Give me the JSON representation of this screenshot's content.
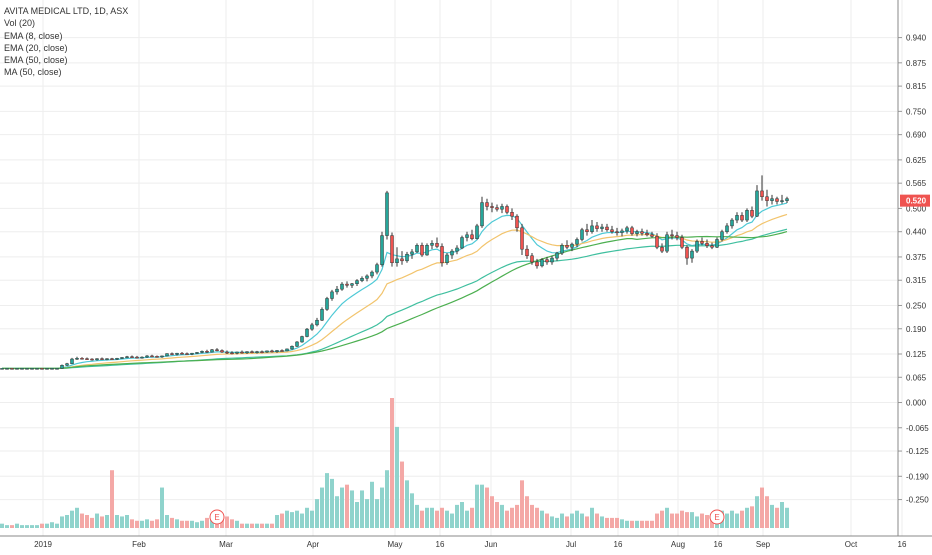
{
  "legend": {
    "title": "AVITA MEDICAL LTD, 1D, ASX",
    "indicators": [
      "Vol (20)",
      "EMA (8, close)",
      "EMA (20, close)",
      "EMA (50, close)",
      "MA (50, close)"
    ]
  },
  "colors": {
    "up": "#26a69a",
    "down": "#ef5350",
    "vol_up": "#8fd3cc",
    "vol_down": "#f4a8a6",
    "ema8": "#4ec9d6",
    "ema20": "#f2c46d",
    "ema50": "#3fbf9f",
    "ma50": "#4caf50",
    "price_tag": "#ef5350",
    "grid": "#eeeeee",
    "axis_text": "#333333",
    "earnings": "#ef5350"
  },
  "chart_data": {
    "type": "candlestick",
    "symbol": "AVITA MEDICAL LTD",
    "interval": "1D",
    "exchange": "ASX",
    "last_price": "0.520",
    "y_ticks": [
      "0.940",
      "0.875",
      "0.815",
      "0.750",
      "0.690",
      "0.625",
      "0.565",
      "0.500",
      "0.440",
      "0.375",
      "0.315",
      "0.250",
      "0.190",
      "0.125",
      "0.065",
      "0.000",
      "-0.065",
      "-0.125",
      "-0.190",
      "-0.250"
    ],
    "price_range": [
      -0.282,
      0.975
    ],
    "x_ticks": [
      "2019",
      "Feb",
      "Mar",
      "Apr",
      "May",
      "16",
      "Jun",
      "Jul",
      "16",
      "Aug",
      "16",
      "Sep",
      "Oct",
      "16"
    ],
    "earnings_markers": [
      "E",
      "E"
    ],
    "candles": [
      [
        0.088,
        0.088,
        0.088,
        0.088,
        3
      ],
      [
        0.088,
        0.089,
        0.087,
        0.088,
        2
      ],
      [
        0.088,
        0.088,
        0.087,
        0.087,
        2
      ],
      [
        0.087,
        0.089,
        0.087,
        0.088,
        3
      ],
      [
        0.088,
        0.089,
        0.087,
        0.088,
        2
      ],
      [
        0.088,
        0.089,
        0.087,
        0.088,
        2
      ],
      [
        0.088,
        0.089,
        0.087,
        0.088,
        2
      ],
      [
        0.088,
        0.089,
        0.087,
        0.088,
        2
      ],
      [
        0.088,
        0.088,
        0.087,
        0.087,
        3
      ],
      [
        0.087,
        0.089,
        0.086,
        0.088,
        3
      ],
      [
        0.088,
        0.089,
        0.087,
        0.088,
        4
      ],
      [
        0.088,
        0.089,
        0.087,
        0.088,
        3
      ],
      [
        0.088,
        0.098,
        0.087,
        0.096,
        8
      ],
      [
        0.096,
        0.102,
        0.094,
        0.1,
        9
      ],
      [
        0.1,
        0.115,
        0.099,
        0.112,
        12
      ],
      [
        0.112,
        0.118,
        0.11,
        0.114,
        14
      ],
      [
        0.114,
        0.117,
        0.111,
        0.113,
        10
      ],
      [
        0.113,
        0.116,
        0.11,
        0.112,
        9
      ],
      [
        0.112,
        0.114,
        0.108,
        0.11,
        7
      ],
      [
        0.11,
        0.114,
        0.108,
        0.113,
        10
      ],
      [
        0.113,
        0.116,
        0.11,
        0.111,
        8
      ],
      [
        0.111,
        0.114,
        0.109,
        0.113,
        9
      ],
      [
        0.113,
        0.115,
        0.11,
        0.112,
        40
      ],
      [
        0.112,
        0.115,
        0.11,
        0.114,
        9
      ],
      [
        0.114,
        0.117,
        0.112,
        0.116,
        8
      ],
      [
        0.116,
        0.12,
        0.114,
        0.118,
        9
      ],
      [
        0.118,
        0.121,
        0.115,
        0.117,
        6
      ],
      [
        0.117,
        0.12,
        0.114,
        0.116,
        5
      ],
      [
        0.116,
        0.119,
        0.113,
        0.117,
        5
      ],
      [
        0.117,
        0.122,
        0.115,
        0.12,
        6
      ],
      [
        0.12,
        0.123,
        0.117,
        0.119,
        5
      ],
      [
        0.119,
        0.121,
        0.116,
        0.118,
        6
      ],
      [
        0.118,
        0.121,
        0.115,
        0.12,
        28
      ],
      [
        0.12,
        0.127,
        0.119,
        0.126,
        9
      ],
      [
        0.126,
        0.129,
        0.122,
        0.124,
        7
      ],
      [
        0.124,
        0.128,
        0.121,
        0.127,
        6
      ],
      [
        0.127,
        0.13,
        0.124,
        0.126,
        5
      ],
      [
        0.126,
        0.129,
        0.123,
        0.125,
        5
      ],
      [
        0.125,
        0.128,
        0.122,
        0.127,
        5
      ],
      [
        0.127,
        0.13,
        0.125,
        0.129,
        4
      ],
      [
        0.129,
        0.134,
        0.127,
        0.132,
        5
      ],
      [
        0.132,
        0.136,
        0.128,
        0.13,
        7
      ],
      [
        0.13,
        0.138,
        0.129,
        0.136,
        6
      ],
      [
        0.136,
        0.14,
        0.132,
        0.134,
        7
      ],
      [
        0.134,
        0.137,
        0.128,
        0.13,
        6
      ],
      [
        0.13,
        0.134,
        0.125,
        0.128,
        8
      ],
      [
        0.128,
        0.132,
        0.124,
        0.127,
        6
      ],
      [
        0.127,
        0.131,
        0.124,
        0.13,
        5
      ],
      [
        0.13,
        0.134,
        0.126,
        0.128,
        3
      ],
      [
        0.128,
        0.132,
        0.125,
        0.131,
        3
      ],
      [
        0.131,
        0.134,
        0.127,
        0.129,
        3
      ],
      [
        0.129,
        0.133,
        0.126,
        0.131,
        3
      ],
      [
        0.131,
        0.134,
        0.127,
        0.13,
        3
      ],
      [
        0.13,
        0.134,
        0.128,
        0.133,
        3
      ],
      [
        0.133,
        0.136,
        0.129,
        0.131,
        3
      ],
      [
        0.131,
        0.135,
        0.128,
        0.134,
        9
      ],
      [
        0.134,
        0.137,
        0.131,
        0.133,
        10
      ],
      [
        0.133,
        0.139,
        0.132,
        0.138,
        12
      ],
      [
        0.138,
        0.147,
        0.136,
        0.145,
        11
      ],
      [
        0.145,
        0.158,
        0.143,
        0.156,
        12
      ],
      [
        0.156,
        0.172,
        0.154,
        0.17,
        10
      ],
      [
        0.17,
        0.192,
        0.168,
        0.189,
        14
      ],
      [
        0.189,
        0.205,
        0.185,
        0.2,
        12
      ],
      [
        0.2,
        0.218,
        0.196,
        0.212,
        20
      ],
      [
        0.212,
        0.245,
        0.21,
        0.24,
        28
      ],
      [
        0.24,
        0.272,
        0.236,
        0.268,
        38
      ],
      [
        0.268,
        0.29,
        0.262,
        0.285,
        34
      ],
      [
        0.285,
        0.3,
        0.278,
        0.292,
        22
      ],
      [
        0.292,
        0.31,
        0.288,
        0.305,
        28
      ],
      [
        0.305,
        0.312,
        0.296,
        0.302,
        30
      ],
      [
        0.302,
        0.308,
        0.295,
        0.306,
        26
      ],
      [
        0.306,
        0.318,
        0.3,
        0.314,
        18
      ],
      [
        0.314,
        0.325,
        0.31,
        0.32,
        26
      ],
      [
        0.32,
        0.33,
        0.312,
        0.326,
        20
      ],
      [
        0.326,
        0.34,
        0.32,
        0.336,
        32
      ],
      [
        0.336,
        0.36,
        0.33,
        0.355,
        20
      ],
      [
        0.355,
        0.44,
        0.35,
        0.43,
        28
      ],
      [
        0.43,
        0.545,
        0.42,
        0.54,
        40
      ],
      [
        0.43,
        0.438,
        0.35,
        0.36,
        90
      ],
      [
        0.36,
        0.4,
        0.35,
        0.37,
        70
      ],
      [
        0.37,
        0.39,
        0.355,
        0.365,
        46
      ],
      [
        0.365,
        0.388,
        0.36,
        0.382,
        33
      ],
      [
        0.382,
        0.395,
        0.37,
        0.388,
        24
      ],
      [
        0.388,
        0.41,
        0.385,
        0.405,
        16
      ],
      [
        0.405,
        0.412,
        0.375,
        0.38,
        12
      ],
      [
        0.38,
        0.41,
        0.378,
        0.405,
        14
      ],
      [
        0.405,
        0.418,
        0.395,
        0.41,
        14
      ],
      [
        0.41,
        0.425,
        0.398,
        0.402,
        12
      ],
      [
        0.402,
        0.41,
        0.35,
        0.36,
        14
      ],
      [
        0.36,
        0.385,
        0.355,
        0.38,
        12
      ],
      [
        0.38,
        0.395,
        0.37,
        0.39,
        10
      ],
      [
        0.39,
        0.405,
        0.382,
        0.398,
        16
      ],
      [
        0.398,
        0.43,
        0.395,
        0.425,
        18
      ],
      [
        0.425,
        0.44,
        0.415,
        0.432,
        12
      ],
      [
        0.432,
        0.445,
        0.418,
        0.422,
        14
      ],
      [
        0.422,
        0.46,
        0.42,
        0.455,
        30
      ],
      [
        0.455,
        0.53,
        0.45,
        0.515,
        30
      ],
      [
        0.515,
        0.525,
        0.495,
        0.505,
        28
      ],
      [
        0.505,
        0.515,
        0.49,
        0.502,
        22
      ],
      [
        0.502,
        0.51,
        0.492,
        0.498,
        18
      ],
      [
        0.498,
        0.512,
        0.488,
        0.505,
        16
      ],
      [
        0.505,
        0.51,
        0.485,
        0.49,
        12
      ],
      [
        0.49,
        0.5,
        0.47,
        0.48,
        14
      ],
      [
        0.48,
        0.485,
        0.44,
        0.45,
        16
      ],
      [
        0.45,
        0.46,
        0.38,
        0.395,
        33
      ],
      [
        0.395,
        0.405,
        0.37,
        0.378,
        22
      ],
      [
        0.378,
        0.385,
        0.355,
        0.362,
        16
      ],
      [
        0.362,
        0.37,
        0.345,
        0.352,
        14
      ],
      [
        0.352,
        0.372,
        0.348,
        0.368,
        12
      ],
      [
        0.368,
        0.375,
        0.355,
        0.362,
        10
      ],
      [
        0.362,
        0.378,
        0.355,
        0.372,
        8
      ],
      [
        0.372,
        0.388,
        0.365,
        0.385,
        7
      ],
      [
        0.385,
        0.41,
        0.38,
        0.405,
        10
      ],
      [
        0.405,
        0.418,
        0.395,
        0.4,
        8
      ],
      [
        0.4,
        0.412,
        0.39,
        0.408,
        10
      ],
      [
        0.408,
        0.425,
        0.4,
        0.42,
        12
      ],
      [
        0.42,
        0.45,
        0.415,
        0.445,
        10
      ],
      [
        0.445,
        0.46,
        0.43,
        0.44,
        8
      ],
      [
        0.44,
        0.47,
        0.435,
        0.455,
        14
      ],
      [
        0.455,
        0.465,
        0.44,
        0.448,
        10
      ],
      [
        0.448,
        0.46,
        0.44,
        0.452,
        8
      ],
      [
        0.452,
        0.46,
        0.44,
        0.445,
        7
      ],
      [
        0.445,
        0.455,
        0.435,
        0.44,
        7
      ],
      [
        0.44,
        0.45,
        0.43,
        0.438,
        7
      ],
      [
        0.438,
        0.448,
        0.428,
        0.442,
        6
      ],
      [
        0.442,
        0.455,
        0.435,
        0.45,
        5
      ],
      [
        0.45,
        0.455,
        0.43,
        0.435,
        5
      ],
      [
        0.435,
        0.445,
        0.428,
        0.44,
        5
      ],
      [
        0.44,
        0.448,
        0.43,
        0.436,
        5
      ],
      [
        0.436,
        0.445,
        0.428,
        0.432,
        5
      ],
      [
        0.432,
        0.44,
        0.425,
        0.428,
        5
      ],
      [
        0.428,
        0.436,
        0.395,
        0.4,
        10
      ],
      [
        0.4,
        0.41,
        0.385,
        0.39,
        12
      ],
      [
        0.39,
        0.44,
        0.385,
        0.432,
        14
      ],
      [
        0.432,
        0.445,
        0.42,
        0.43,
        10
      ],
      [
        0.43,
        0.44,
        0.418,
        0.425,
        10
      ],
      [
        0.425,
        0.432,
        0.395,
        0.4,
        12
      ],
      [
        0.4,
        0.405,
        0.355,
        0.372,
        11
      ],
      [
        0.372,
        0.395,
        0.36,
        0.39,
        11
      ],
      [
        0.39,
        0.42,
        0.385,
        0.415,
        8
      ],
      [
        0.415,
        0.425,
        0.405,
        0.41,
        10
      ],
      [
        0.41,
        0.42,
        0.398,
        0.404,
        9
      ],
      [
        0.404,
        0.412,
        0.395,
        0.4,
        8
      ],
      [
        0.4,
        0.425,
        0.398,
        0.42,
        9
      ],
      [
        0.42,
        0.445,
        0.415,
        0.44,
        12
      ],
      [
        0.44,
        0.462,
        0.435,
        0.455,
        10
      ],
      [
        0.455,
        0.475,
        0.448,
        0.47,
        12
      ],
      [
        0.47,
        0.49,
        0.462,
        0.482,
        10
      ],
      [
        0.482,
        0.49,
        0.465,
        0.47,
        12
      ],
      [
        0.47,
        0.5,
        0.465,
        0.495,
        14
      ],
      [
        0.495,
        0.505,
        0.475,
        0.48,
        15
      ],
      [
        0.48,
        0.56,
        0.478,
        0.545,
        22
      ],
      [
        0.545,
        0.585,
        0.52,
        0.53,
        28
      ],
      [
        0.53,
        0.548,
        0.505,
        0.52,
        22
      ],
      [
        0.52,
        0.535,
        0.51,
        0.525,
        16
      ],
      [
        0.525,
        0.53,
        0.51,
        0.518,
        14
      ],
      [
        0.518,
        0.535,
        0.512,
        0.52,
        18
      ],
      [
        0.52,
        0.53,
        0.514,
        0.525,
        14
      ]
    ],
    "earnings_candle_indices": [
      43,
      143
    ]
  }
}
